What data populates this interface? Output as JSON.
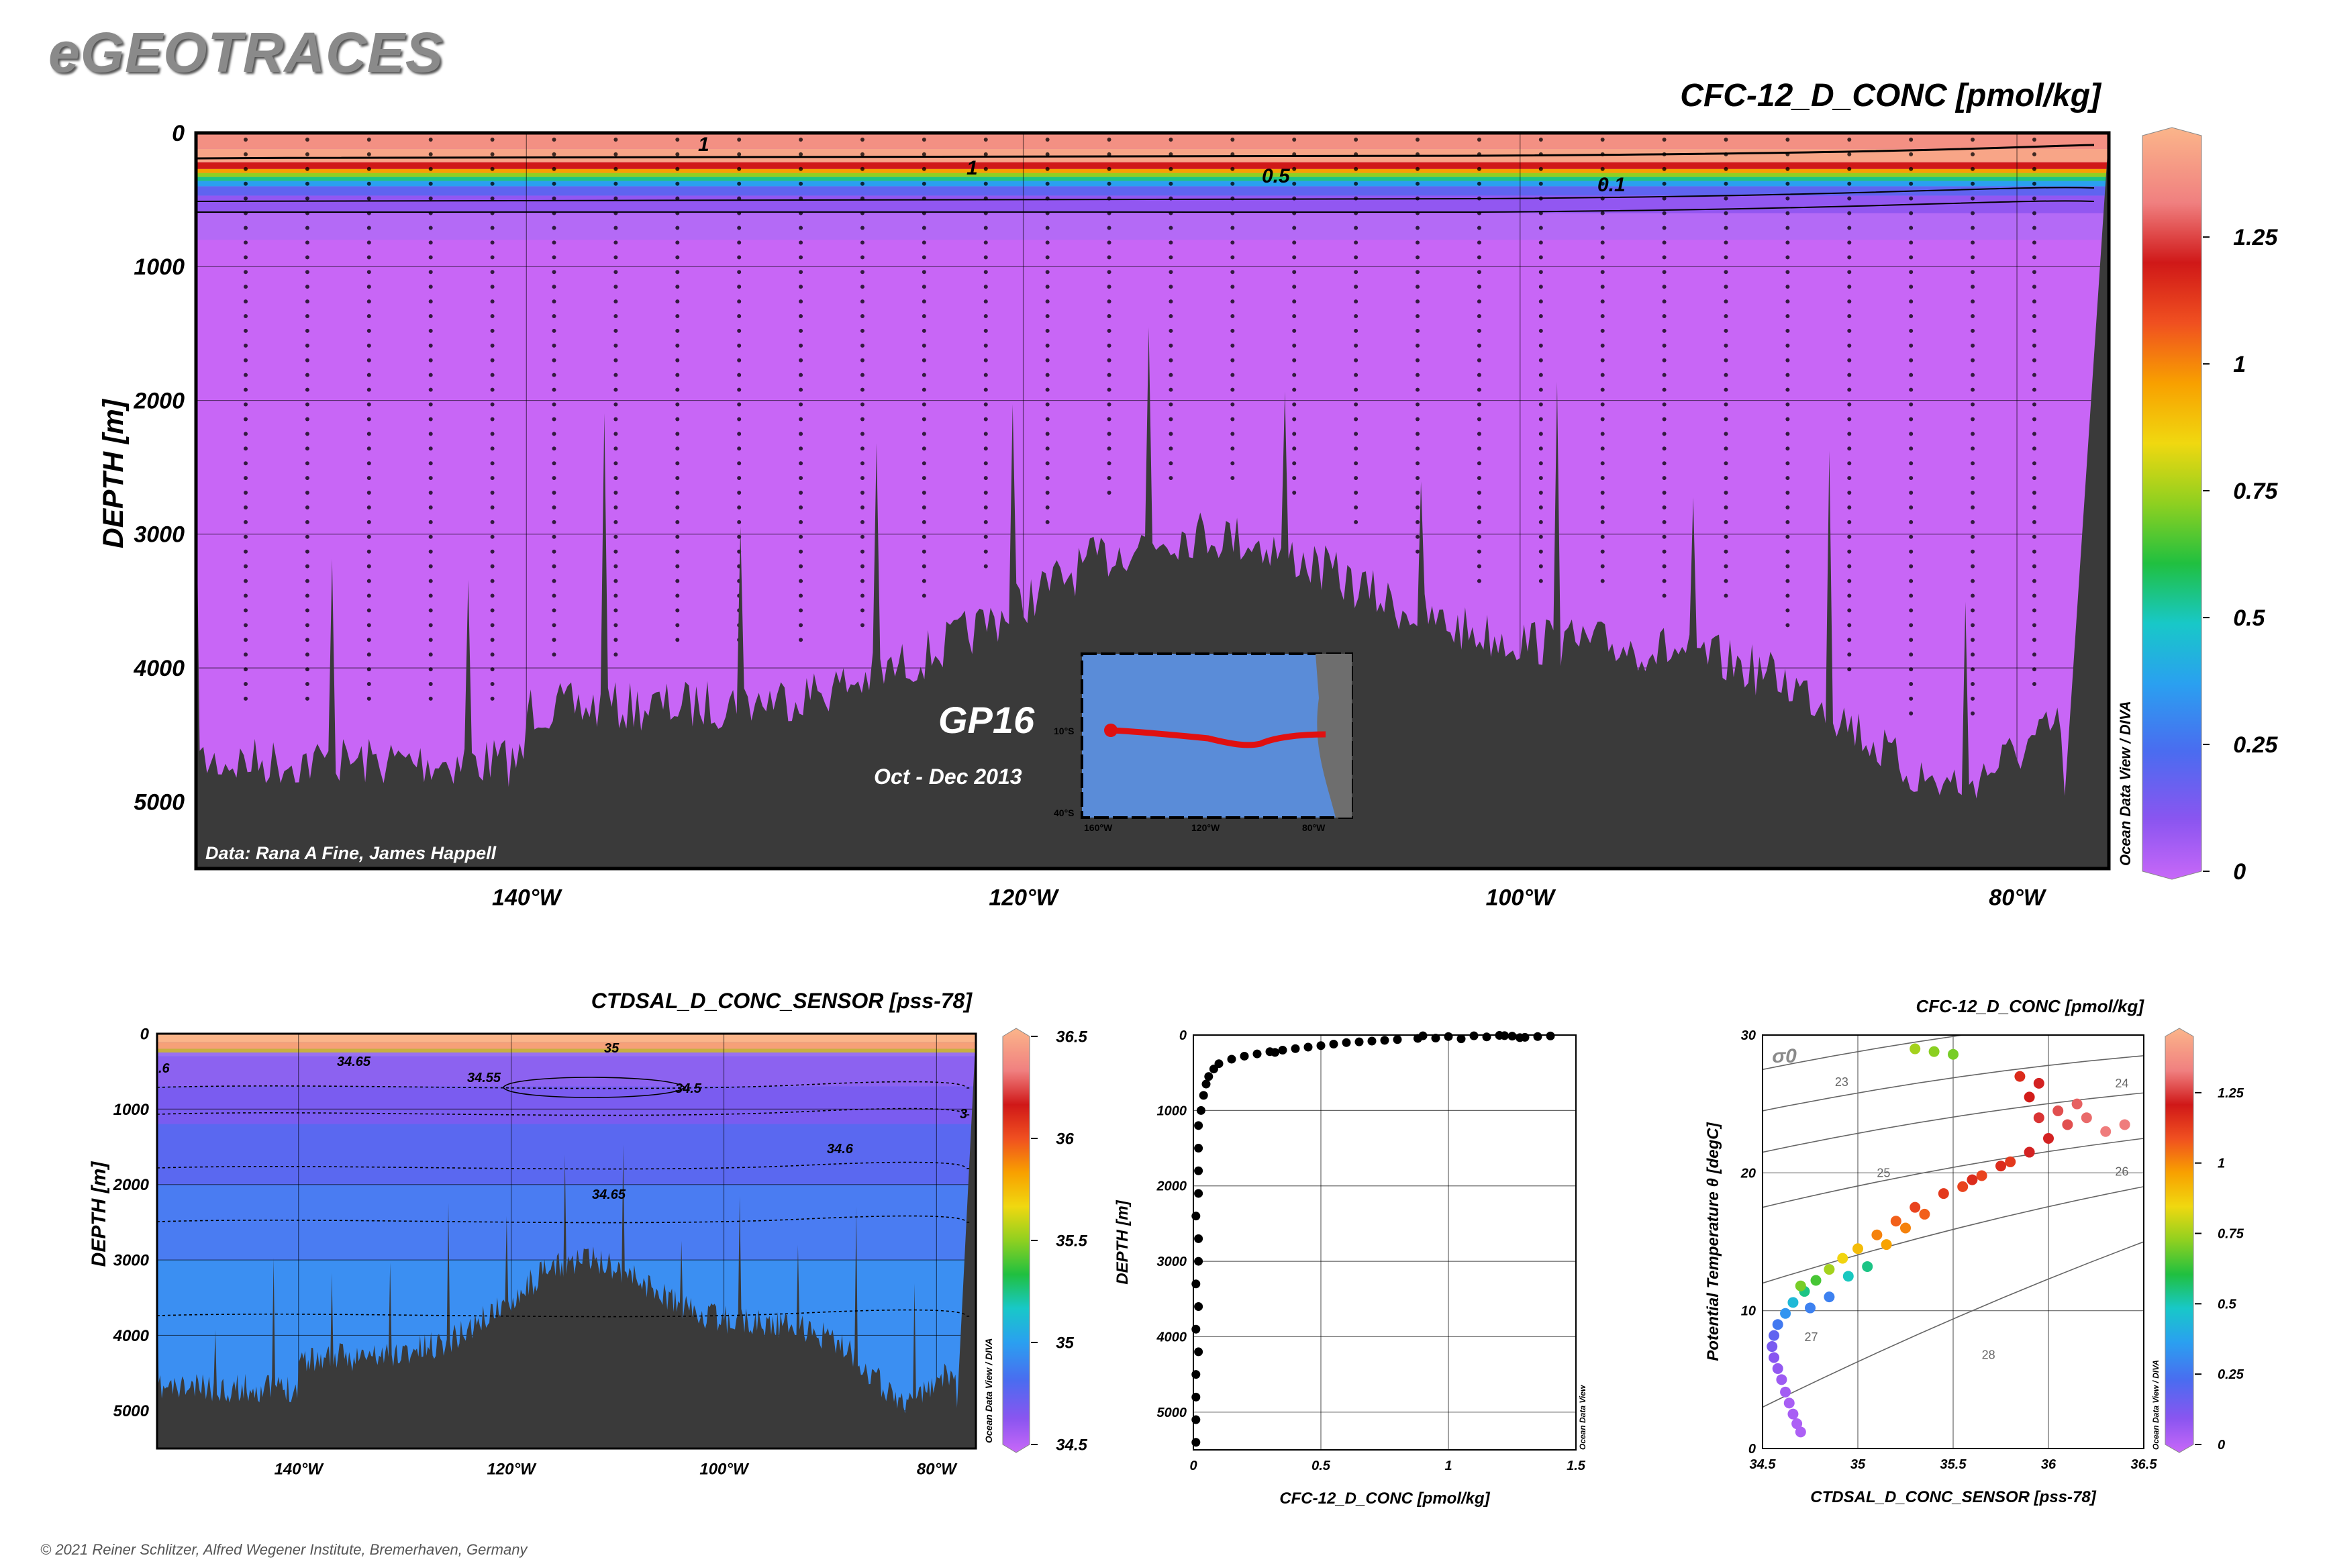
{
  "brand": "eGEOTRACES",
  "copyright": "© 2021 Reiner Schlitzer, Alfred Wegener Institute, Bremerhaven, Germany",
  "credit_tag": "Ocean Data View / DIVA",
  "odv_tag": "Ocean Data View",
  "colors": {
    "seafloor": "#3a3a3a",
    "bg_violet": "#c866f6",
    "sal_blue": "#3b8ff2"
  },
  "chart_data": [
    {
      "type": "heatmap",
      "title": "CFC-12_D_CONC [pmol/kg]",
      "ylabel": "DEPTH [m]",
      "xlabel": "",
      "x_ticks": [
        "140°W",
        "120°W",
        "100°W",
        "80°W"
      ],
      "x_tick_values": [
        -140,
        -120,
        -100,
        -80
      ],
      "xlim": [
        -153.3,
        -76.3
      ],
      "y_ticks": [
        "0",
        "1000",
        "2000",
        "3000",
        "4000",
        "5000"
      ],
      "y_tick_values": [
        0,
        1000,
        2000,
        3000,
        4000,
        5000
      ],
      "ylim": [
        5500,
        0
      ],
      "colorbar": {
        "ticks": [
          "0",
          "0.25",
          "0.5",
          "0.75",
          "1",
          "1.25"
        ],
        "tick_values": [
          0,
          0.25,
          0.5,
          0.75,
          1,
          1.25
        ],
        "range": [
          0,
          1.45
        ]
      },
      "contour_labels": [
        "1",
        "1",
        "0.5",
        "0.1"
      ],
      "section_label": "GP16",
      "date_label": "Oct - Dec 2013",
      "data_credit": "Data: Rana A Fine, James Happell",
      "inset_map": {
        "lat_labels": [
          "10°S",
          "40°S"
        ],
        "lon_labels": [
          "160°W",
          "120°W",
          "80°W"
        ]
      }
    },
    {
      "type": "heatmap",
      "title": "CTDSAL_D_CONC_SENSOR [pss-78]",
      "ylabel": "DEPTH [m]",
      "xlabel": "",
      "x_ticks": [
        "140°W",
        "120°W",
        "100°W",
        "80°W"
      ],
      "x_tick_values": [
        -140,
        -120,
        -100,
        -80
      ],
      "xlim": [
        -153.3,
        -76.3
      ],
      "y_ticks": [
        "0",
        "1000",
        "2000",
        "3000",
        "4000",
        "5000"
      ],
      "y_tick_values": [
        0,
        1000,
        2000,
        3000,
        4000,
        5000
      ],
      "ylim": [
        5500,
        0
      ],
      "colorbar": {
        "ticks": [
          "34.5",
          "35",
          "35.5",
          "36",
          "36.5"
        ],
        "tick_values": [
          34.5,
          35,
          35.5,
          36,
          36.5
        ],
        "range": [
          34.5,
          36.5
        ]
      },
      "contour_labels": [
        "34.65",
        "34.55",
        "34.5",
        "34.6",
        "34.65",
        "35",
        "3",
        ".6"
      ]
    },
    {
      "type": "scatter",
      "title": "",
      "xlabel": "CFC-12_D_CONC [pmol/kg]",
      "ylabel": "DEPTH [m]",
      "x_ticks": [
        "0",
        "0.5",
        "1",
        "1.5"
      ],
      "x_tick_values": [
        0,
        0.5,
        1,
        1.5
      ],
      "xlim": [
        0,
        1.5
      ],
      "y_ticks": [
        "0",
        "1000",
        "2000",
        "3000",
        "4000",
        "5000"
      ],
      "y_tick_values": [
        0,
        1000,
        2000,
        3000,
        4000,
        5000
      ],
      "ylim": [
        5500,
        0
      ],
      "series": [
        {
          "values": [
            [
              1.2,
              5
            ],
            [
              1.1,
              10
            ],
            [
              1.25,
              15
            ],
            [
              0.9,
              10
            ],
            [
              1.0,
              20
            ],
            [
              1.3,
              30
            ],
            [
              0.95,
              40
            ],
            [
              1.05,
              50
            ],
            [
              0.8,
              60
            ],
            [
              0.7,
              80
            ],
            [
              0.6,
              100
            ],
            [
              0.55,
              120
            ],
            [
              0.5,
              140
            ],
            [
              0.45,
              160
            ],
            [
              0.4,
              180
            ],
            [
              0.35,
              200
            ],
            [
              0.3,
              220
            ],
            [
              0.25,
              250
            ],
            [
              0.2,
              280
            ],
            [
              0.15,
              320
            ],
            [
              0.1,
              380
            ],
            [
              0.08,
              450
            ],
            [
              0.06,
              550
            ],
            [
              0.05,
              650
            ],
            [
              0.04,
              800
            ],
            [
              0.03,
              1000
            ],
            [
              0.02,
              1200
            ],
            [
              0.02,
              1500
            ],
            [
              0.02,
              1800
            ],
            [
              0.02,
              2100
            ],
            [
              0.01,
              2400
            ],
            [
              0.02,
              2700
            ],
            [
              0.02,
              3000
            ],
            [
              0.01,
              3300
            ],
            [
              0.02,
              3600
            ],
            [
              0.01,
              3900
            ],
            [
              0.02,
              4200
            ],
            [
              0.01,
              4500
            ],
            [
              0.01,
              4800
            ],
            [
              0.01,
              5100
            ],
            [
              0.01,
              5400
            ],
            [
              1.15,
              25
            ],
            [
              1.22,
              8
            ],
            [
              1.28,
              35
            ],
            [
              0.88,
              45
            ],
            [
              0.75,
              70
            ],
            [
              1.35,
              20
            ],
            [
              1.4,
              12
            ],
            [
              0.65,
              90
            ],
            [
              0.32,
              230
            ]
          ]
        }
      ]
    },
    {
      "type": "scatter",
      "title": "CFC-12_D_CONC [pmol/kg]",
      "xlabel": "CTDSAL_D_CONC_SENSOR [pss-78]",
      "ylabel": "Potential Temperature θ [degC]",
      "x_ticks": [
        "34.5",
        "35",
        "35.5",
        "36",
        "36.5"
      ],
      "x_tick_values": [
        34.5,
        35,
        35.5,
        36,
        36.5
      ],
      "xlim": [
        34.5,
        36.5
      ],
      "y_ticks": [
        "0",
        "10",
        "20",
        "30"
      ],
      "y_tick_values": [
        0,
        10,
        20,
        30
      ],
      "ylim": [
        0,
        30
      ],
      "isopycnal_labels": [
        "23",
        "24",
        "25",
        "26",
        "27",
        "28"
      ],
      "sigma_label": "σ0",
      "colorbar": {
        "ticks": [
          "0",
          "0.25",
          "0.5",
          "0.75",
          "1",
          "1.25"
        ],
        "tick_values": [
          0,
          0.25,
          0.5,
          0.75,
          1,
          1.25
        ],
        "range": [
          0,
          1.45
        ]
      },
      "series": [
        {
          "values": [
            [
              34.7,
              1.2,
              0.05
            ],
            [
              34.68,
              1.8,
              0.05
            ],
            [
              34.66,
              2.5,
              0.06
            ],
            [
              34.64,
              3.3,
              0.06
            ],
            [
              34.62,
              4.1,
              0.07
            ],
            [
              34.6,
              5.0,
              0.08
            ],
            [
              34.58,
              5.8,
              0.1
            ],
            [
              34.56,
              6.6,
              0.12
            ],
            [
              34.55,
              7.4,
              0.15
            ],
            [
              34.56,
              8.2,
              0.2
            ],
            [
              34.58,
              9.0,
              0.28
            ],
            [
              34.62,
              9.8,
              0.35
            ],
            [
              34.66,
              10.6,
              0.45
            ],
            [
              34.72,
              11.4,
              0.55
            ],
            [
              34.78,
              12.2,
              0.65
            ],
            [
              34.85,
              13.0,
              0.75
            ],
            [
              34.92,
              13.8,
              0.85
            ],
            [
              35.0,
              14.5,
              0.9
            ],
            [
              35.1,
              15.5,
              1.0
            ],
            [
              35.2,
              16.5,
              1.05
            ],
            [
              35.3,
              17.5,
              1.1
            ],
            [
              35.45,
              18.5,
              1.12
            ],
            [
              35.6,
              19.5,
              1.15
            ],
            [
              35.75,
              20.5,
              1.15
            ],
            [
              35.9,
              21.5,
              1.2
            ],
            [
              36.0,
              22.5,
              1.2
            ],
            [
              36.1,
              23.5,
              1.25
            ],
            [
              36.2,
              24.0,
              1.28
            ],
            [
              36.3,
              23.0,
              1.3
            ],
            [
              36.4,
              23.5,
              1.3
            ],
            [
              35.9,
              25.5,
              1.18
            ],
            [
              35.95,
              26.5,
              1.2
            ],
            [
              35.85,
              27.0,
              1.15
            ],
            [
              35.4,
              28.8,
              0.72
            ],
            [
              35.3,
              29.0,
              0.75
            ],
            [
              35.5,
              28.6,
              0.7
            ],
            [
              34.85,
              11.0,
              0.3
            ],
            [
              34.75,
              10.2,
              0.3
            ],
            [
              34.7,
              11.8,
              0.7
            ],
            [
              34.95,
              12.5,
              0.5
            ],
            [
              35.05,
              13.2,
              0.55
            ],
            [
              35.15,
              14.8,
              0.95
            ],
            [
              35.25,
              16.0,
              1.0
            ],
            [
              35.35,
              17.0,
              1.05
            ],
            [
              35.55,
              19.0,
              1.1
            ],
            [
              35.65,
              19.8,
              1.1
            ],
            [
              35.8,
              20.8,
              1.12
            ],
            [
              36.05,
              24.5,
              1.25
            ],
            [
              36.15,
              25.0,
              1.27
            ],
            [
              35.95,
              24.0,
              1.22
            ]
          ]
        }
      ]
    }
  ]
}
